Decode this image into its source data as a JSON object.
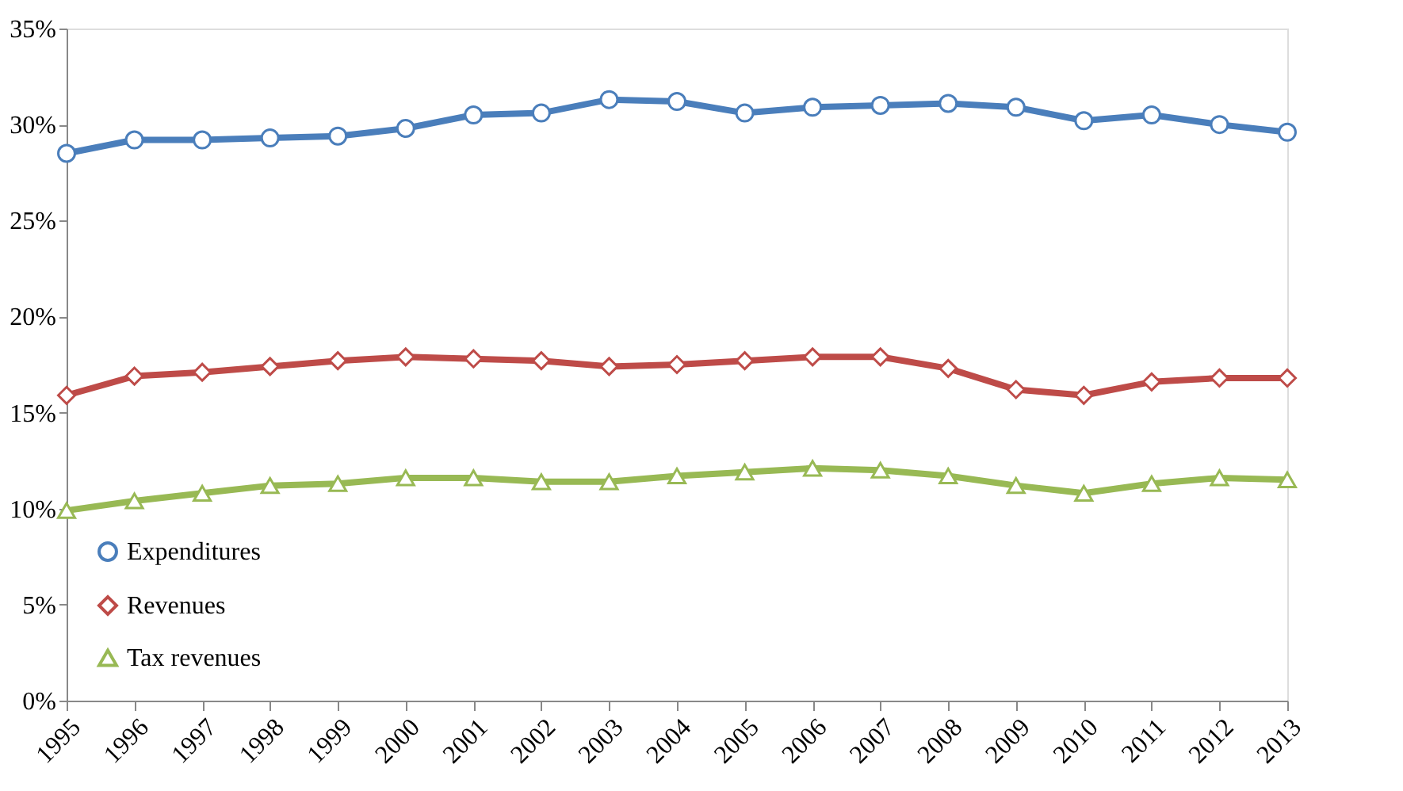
{
  "chart_data": {
    "type": "line",
    "categories": [
      "1995",
      "1996",
      "1997",
      "1998",
      "1999",
      "2000",
      "2001",
      "2002",
      "2003",
      "2004",
      "2005",
      "2006",
      "2007",
      "2008",
      "2009",
      "2010",
      "2011",
      "2012",
      "2013"
    ],
    "series": [
      {
        "name": "Expenditures",
        "color": "#4a7ebb",
        "marker": "circle",
        "values": [
          28.5,
          29.2,
          29.2,
          29.3,
          29.4,
          29.8,
          30.5,
          30.6,
          31.3,
          31.2,
          30.6,
          30.9,
          31.0,
          31.1,
          30.9,
          30.2,
          30.5,
          30.0,
          29.6
        ]
      },
      {
        "name": "Revenues",
        "color": "#be4b48",
        "marker": "diamond",
        "values": [
          15.9,
          16.9,
          17.1,
          17.4,
          17.7,
          17.9,
          17.8,
          17.7,
          17.4,
          17.5,
          17.7,
          17.9,
          17.9,
          17.3,
          16.2,
          15.9,
          16.6,
          16.8,
          16.8
        ]
      },
      {
        "name": "Tax revenues",
        "color": "#98b954",
        "marker": "triangle",
        "values": [
          9.9,
          10.4,
          10.8,
          11.2,
          11.3,
          11.6,
          11.6,
          11.4,
          11.4,
          11.7,
          11.9,
          12.1,
          12.0,
          11.7,
          11.2,
          10.8,
          11.3,
          11.6,
          11.5
        ]
      }
    ],
    "ylim": [
      0,
      35
    ],
    "yticks": [
      {
        "value": 0,
        "label": "0%"
      },
      {
        "value": 5,
        "label": "5%"
      },
      {
        "value": 10,
        "label": "10%"
      },
      {
        "value": 15,
        "label": "15%"
      },
      {
        "value": 20,
        "label": "20%"
      },
      {
        "value": 25,
        "label": "25%"
      },
      {
        "value": 30,
        "label": "30%"
      },
      {
        "value": 35,
        "label": "35%"
      }
    ],
    "grid": false,
    "legend": "bottom left",
    "line_style": "solid"
  }
}
